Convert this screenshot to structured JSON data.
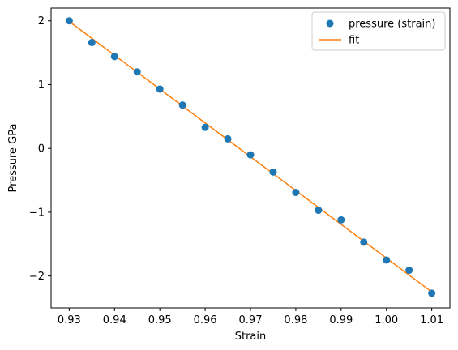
{
  "chart_data": {
    "type": "scatter",
    "title": "",
    "xlabel": "Strain",
    "ylabel": "Pressure GPa",
    "xlim": [
      0.926,
      1.014
    ],
    "ylim": [
      -2.5,
      2.2
    ],
    "xticks": [
      0.93,
      0.94,
      0.95,
      0.96,
      0.97,
      0.98,
      0.99,
      1.0,
      1.01
    ],
    "xtick_labels": [
      "0.93",
      "0.94",
      "0.95",
      "0.96",
      "0.97",
      "0.98",
      "0.99",
      "1.00",
      "1.01"
    ],
    "yticks": [
      -2,
      -1,
      0,
      1,
      2
    ],
    "ytick_labels": [
      "−2",
      "−1",
      "0",
      "1",
      "2"
    ],
    "grid": false,
    "legend_position": "top-right",
    "series": [
      {
        "name": "pressure (strain)",
        "kind": "scatter",
        "color": "#1f77b4",
        "x": [
          0.93,
          0.935,
          0.94,
          0.945,
          0.95,
          0.955,
          0.96,
          0.965,
          0.97,
          0.975,
          0.98,
          0.985,
          0.99,
          0.995,
          1.0,
          1.005,
          1.01
        ],
        "y": [
          2.0,
          1.66,
          1.44,
          1.2,
          0.93,
          0.68,
          0.33,
          0.15,
          -0.1,
          -0.37,
          -0.69,
          -0.97,
          -1.12,
          -1.47,
          -1.75,
          -1.91,
          -2.27
        ]
      },
      {
        "name": "fit",
        "kind": "line",
        "color": "#ff7f0e",
        "x": [
          0.93,
          1.01
        ],
        "y": [
          1.99,
          -2.25
        ]
      }
    ]
  }
}
